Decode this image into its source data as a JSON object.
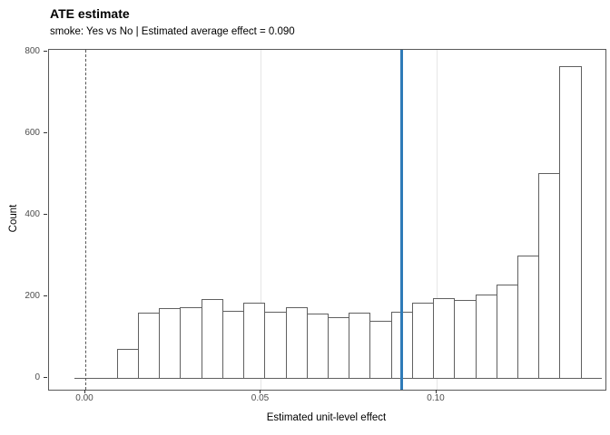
{
  "header": {
    "title": "ATE estimate",
    "subtitle": "smoke: Yes vs No | Estimated average effect = 0.090"
  },
  "colors": {
    "ate_line_blue": "#2f7bb8",
    "zero_line_gray": "#575757",
    "bar_stroke": "#606060",
    "bar_fill": "#ffffff",
    "gridline": "#e6e6e6",
    "panel_border": "#595959",
    "tick_label": "#4d4d4d"
  },
  "chart_data": {
    "type": "bar",
    "subtype": "histogram",
    "title": "ATE estimate",
    "subtitle": "smoke: Yes vs No | Estimated average effect = 0.090",
    "xlabel": "Estimated unit-level effect",
    "ylabel": "Count",
    "estimated_average_effect": 0.09,
    "bin_start": 0.009,
    "bin_width": 0.006,
    "counts": [
      73,
      160,
      173,
      175,
      195,
      166,
      186,
      162,
      175,
      158,
      150,
      160,
      140,
      162,
      186,
      196,
      192,
      206,
      230,
      300,
      503,
      765
    ],
    "baseline_extent": [
      -0.003,
      0.147
    ],
    "x_ticks": [
      0.0,
      0.05,
      0.1
    ],
    "x_tick_labels": [
      "0.00",
      "0.05",
      "0.10"
    ],
    "y_ticks": [
      0,
      200,
      400,
      600,
      800
    ],
    "y_tick_labels": [
      "0",
      "200",
      "400",
      "600",
      "800"
    ],
    "x_gridlines": [
      0.05,
      0.1
    ],
    "xlim": [
      -0.010336,
      0.148062
    ],
    "ylim": [
      -28,
      805
    ],
    "grid": "vertical-major-only",
    "legend": "none",
    "vlines": [
      {
        "x": 0.0,
        "style": "dashed",
        "meaning": "zero-effect reference"
      },
      {
        "x": 0.09,
        "style": "solid",
        "meaning": "estimated average effect"
      }
    ]
  }
}
